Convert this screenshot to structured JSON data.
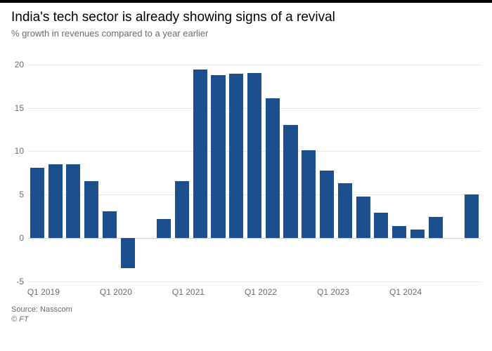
{
  "title": "India's tech sector is already showing signs of a revival",
  "subtitle": "% growth in revenues compared to a year earlier",
  "source": "Source: Nasscom",
  "copyright": "© FT",
  "chart": {
    "type": "bar",
    "ylim": [
      -5,
      22
    ],
    "yticks": [
      -5,
      0,
      5,
      10,
      15,
      20
    ],
    "bar_color": "#1d4f8c",
    "grid_color": "#e6e6e6",
    "baseline_color": "#cfcfcf",
    "background_color": "#ffffff",
    "bar_gap_ratio": 0.22,
    "title_fontsize": 19,
    "subtitle_fontsize": 13,
    "axis_fontsize": 12,
    "axis_color": "#6b6b6b",
    "categories": [
      "Q1 2019",
      "Q2 2019",
      "Q3 2019",
      "Q4 2019",
      "Q1 2020",
      "Q2 2020",
      "Q3 2020",
      "Q4 2020",
      "Q1 2021",
      "Q2 2021",
      "Q3 2021",
      "Q4 2021",
      "Q1 2022",
      "Q2 2022",
      "Q3 2022",
      "Q4 2022",
      "Q1 2023",
      "Q2 2023",
      "Q3 2023",
      "Q4 2023",
      "Q1 2024",
      "Q2 2024",
      "Q3 2024"
    ],
    "values": [
      8.1,
      8.5,
      8.5,
      6.6,
      3.1,
      -3.5,
      null,
      2.2,
      6.6,
      19.4,
      18.8,
      18.9,
      19.0,
      16.1,
      13.0,
      10.1,
      7.8,
      6.3,
      4.8,
      2.9,
      1.4,
      1.0,
      2.4
    ],
    "post_gap_value": 5.0,
    "xticks": [
      {
        "index": 0,
        "label": "Q1 2019"
      },
      {
        "index": 4,
        "label": "Q1 2020"
      },
      {
        "index": 8,
        "label": "Q1 2021"
      },
      {
        "index": 12,
        "label": "Q1 2022"
      },
      {
        "index": 16,
        "label": "Q1 2023"
      },
      {
        "index": 20,
        "label": "Q1 2024"
      }
    ]
  }
}
